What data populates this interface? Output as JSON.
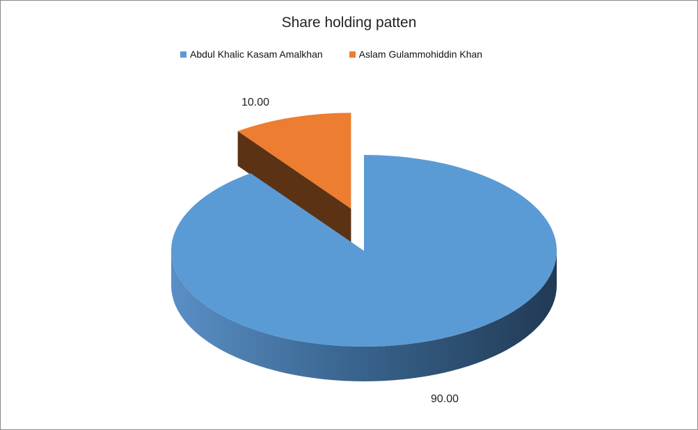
{
  "chart_data": {
    "type": "pie",
    "title": "Share holding patten",
    "categories": [
      "Abdul Khalic Kasam Amalkhan",
      "Aslam Gulammohiddin  Khan"
    ],
    "values": [
      90.0,
      10.0
    ],
    "data_labels": [
      "90.00",
      "10.00"
    ],
    "colors": [
      "#5b9bd5",
      "#ed7d31"
    ],
    "style": "3d-exploded",
    "legend": "top"
  }
}
